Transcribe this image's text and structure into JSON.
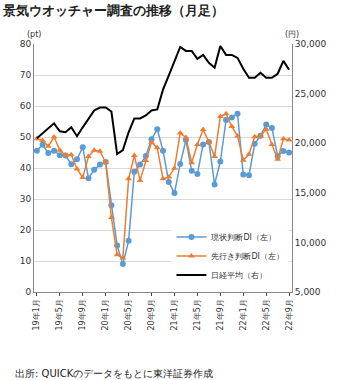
{
  "chart_data": {
    "type": "line",
    "title": "景気ウオッチャー調査の推移（月足）",
    "y_label": "(pt)",
    "y2_label": "(円)",
    "source": "出所: QUICKのデータをもとに東洋証券作成",
    "categories": [
      "19年1月",
      null,
      null,
      null,
      "19年5月",
      null,
      null,
      null,
      "19年9月",
      null,
      null,
      null,
      "20年1月",
      null,
      null,
      null,
      "20年5月",
      null,
      null,
      null,
      "20年9月",
      null,
      null,
      null,
      "21年1月",
      null,
      null,
      null,
      "21年5月",
      null,
      null,
      null,
      "21年9月",
      null,
      null,
      null,
      "22年1月",
      null,
      null,
      null,
      "22年5月",
      null,
      null,
      null,
      "22年9月"
    ],
    "series": [
      {
        "name": "現状判断DI（左）",
        "color": "#5b9bd5",
        "marker": "circle",
        "axis": "y",
        "values": [
          45.6,
          47.5,
          44.8,
          45.6,
          44.1,
          44.0,
          41.2,
          42.8,
          46.7,
          36.7,
          39.4,
          41.1,
          41.9,
          28.0,
          15.0,
          9.0,
          16.5,
          38.8,
          41.1,
          43.9,
          49.3,
          52.5,
          45.6,
          35.5,
          31.9,
          41.3,
          49.0,
          39.1,
          38.1,
          47.6,
          48.4,
          34.7,
          42.1,
          55.5,
          56.3,
          57.5,
          37.9,
          37.7,
          47.8,
          50.4,
          54.0,
          52.9,
          43.8,
          45.5,
          45.0
        ]
      },
      {
        "name": "先行き判断DI（左）",
        "color": "#ed7d31",
        "marker": "triangle-up",
        "axis": "y",
        "values": [
          49.4,
          48.9,
          47.0,
          50.0,
          45.7,
          44.1,
          44.3,
          39.7,
          36.9,
          43.7,
          45.7,
          45.4,
          41.8,
          24.0,
          12.0,
          11.0,
          36.5,
          44.0,
          36.0,
          42.4,
          48.3,
          46.5,
          36.5,
          37.1,
          39.9,
          51.3,
          49.8,
          41.7,
          47.6,
          52.4,
          48.4,
          43.7,
          56.6,
          57.5,
          53.4,
          50.3,
          42.5,
          44.4,
          50.1,
          50.3,
          52.5,
          47.6,
          42.8,
          49.4,
          49.0
        ]
      },
      {
        "name": "日経平均（右）",
        "color": "#000000",
        "marker": "none",
        "axis": "y2",
        "values": [
          20500,
          21000,
          21400,
          22000,
          21200,
          21100,
          21600,
          20700,
          21600,
          22400,
          23300,
          23600,
          23600,
          23200,
          18900,
          19300,
          21100,
          22500,
          22500,
          22800,
          23300,
          23400,
          25400,
          26800,
          28300,
          29700,
          29300,
          29300,
          28500,
          28900,
          28100,
          27600,
          29800,
          28900,
          28900,
          28600,
          27500,
          26600,
          26600,
          27100,
          26600,
          26600,
          27000,
          28300,
          27400
        ]
      }
    ],
    "ylim": [
      0,
      80
    ],
    "yticks": [
      0,
      10,
      20,
      30,
      40,
      50,
      60,
      70,
      80
    ],
    "y2lim": [
      5000,
      30000
    ],
    "y2ticks": [
      {
        "value": 5000,
        "label": "5,000"
      },
      {
        "value": 10000,
        "label": "10,000"
      },
      {
        "value": 15000,
        "label": "15,000"
      },
      {
        "value": 20000,
        "label": "20,000"
      },
      {
        "value": 25000,
        "label": "25,000"
      },
      {
        "value": 30000,
        "label": "30,000"
      }
    ],
    "grid": true,
    "legend": "lower right"
  }
}
